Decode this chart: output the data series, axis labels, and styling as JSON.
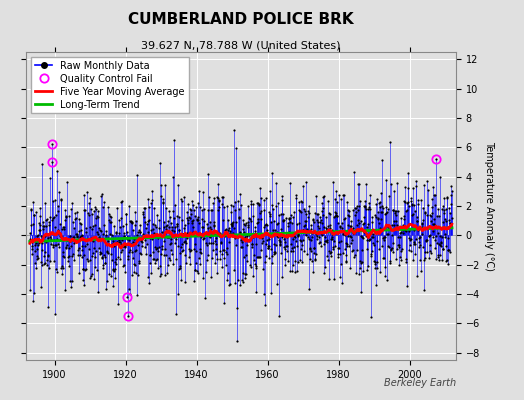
{
  "title": "CUMBERLAND POLICE BRK",
  "subtitle": "39.627 N, 78.788 W (United States)",
  "ylabel": "Temperature Anomaly (°C)",
  "attribution": "Berkeley Earth",
  "xlim": [
    1892,
    2013
  ],
  "ylim": [
    -8.5,
    12.5
  ],
  "yticks": [
    -8,
    -6,
    -4,
    -2,
    0,
    2,
    4,
    6,
    8,
    10,
    12
  ],
  "xticks": [
    1900,
    1920,
    1940,
    1960,
    1980,
    2000
  ],
  "start_year": 1893,
  "end_year": 2011,
  "seed": 17,
  "bg_color": "#e0e0e0",
  "plot_bg_color": "#e0e0e0",
  "raw_line_color": "#0000ff",
  "raw_dot_color": "#000000",
  "moving_avg_color": "#ff0000",
  "trend_color": "#00bb00",
  "qc_fail_color": "#ff00ff",
  "grid_color": "#ffffff",
  "title_fontsize": 11,
  "subtitle_fontsize": 8,
  "ylabel_fontsize": 7,
  "tick_fontsize": 7,
  "legend_fontsize": 7
}
